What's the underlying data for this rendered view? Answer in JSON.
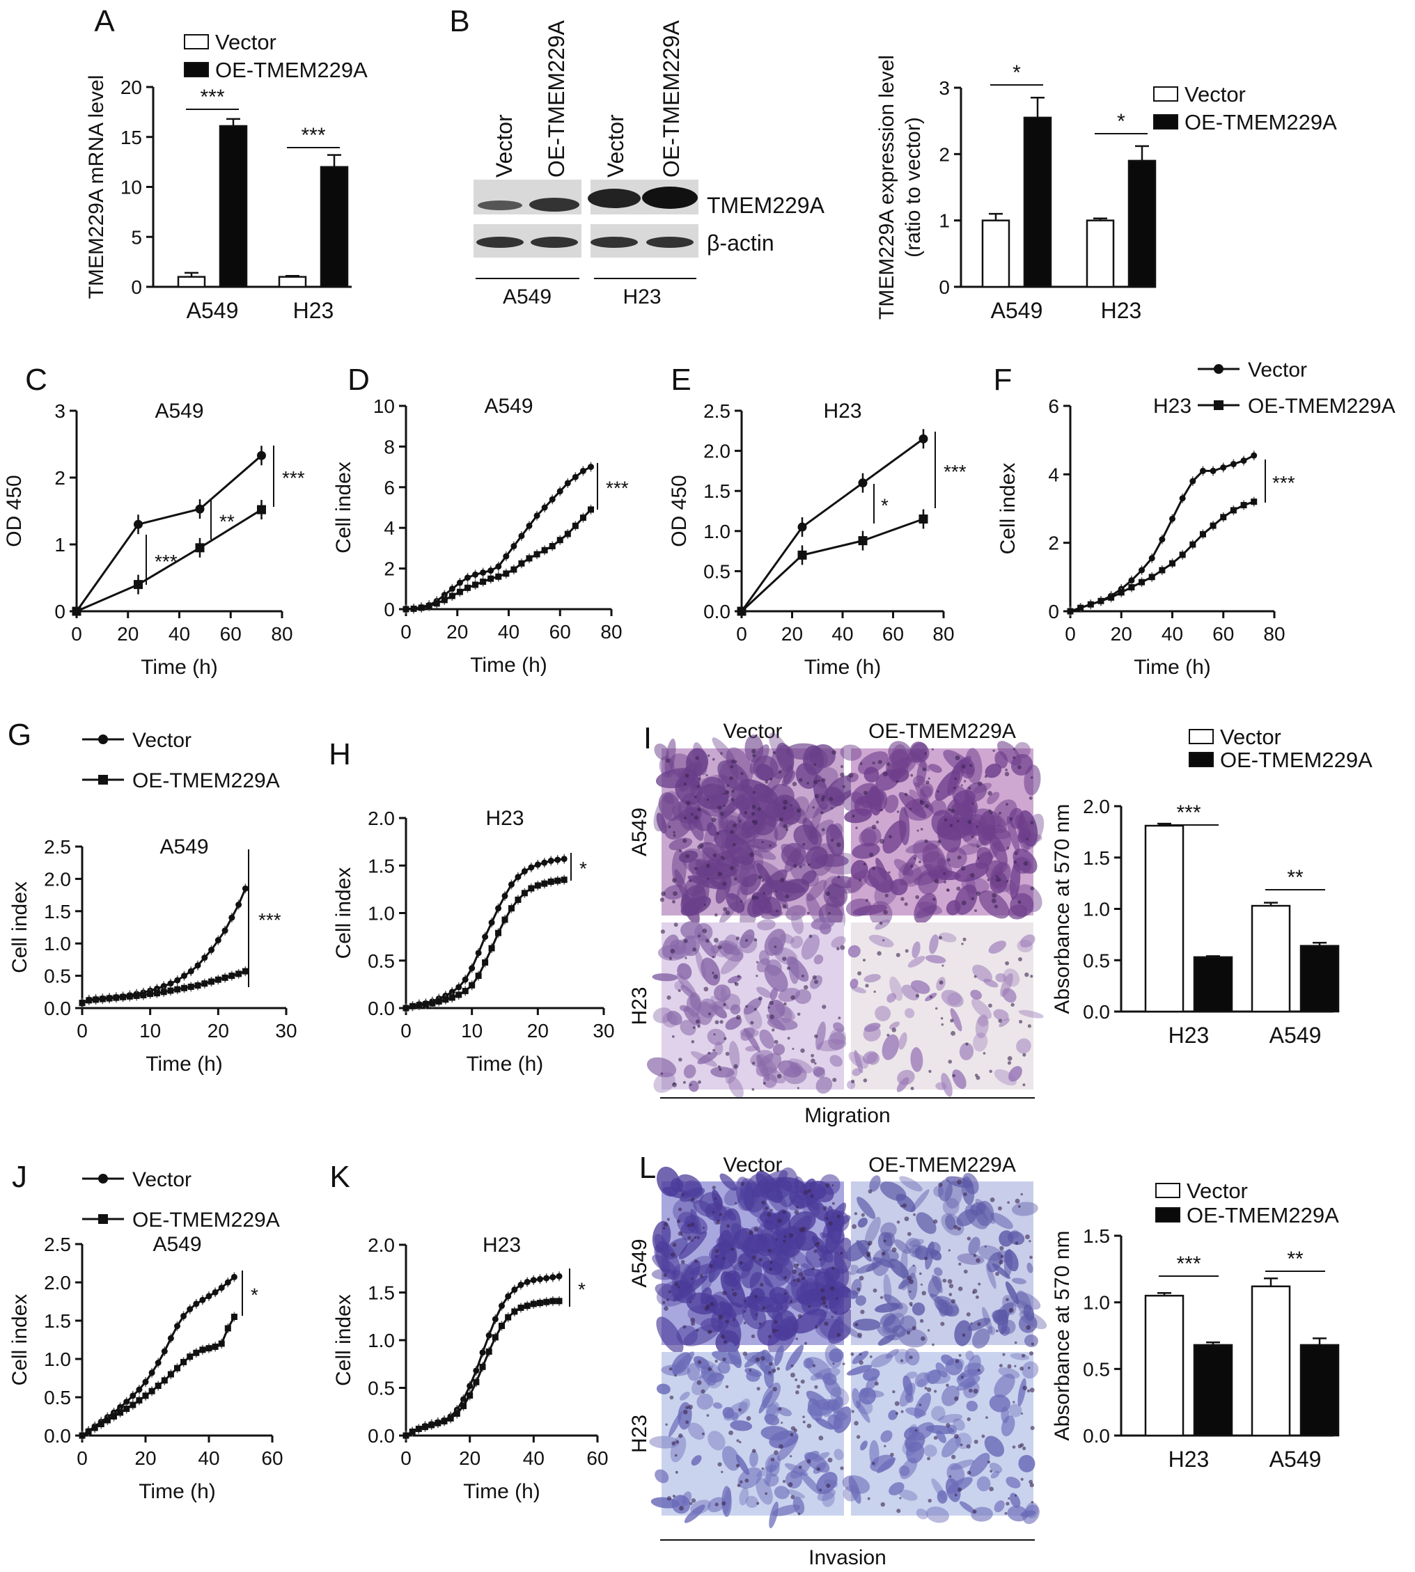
{
  "panel_letters": [
    "A",
    "B",
    "C",
    "D",
    "E",
    "F",
    "G",
    "H",
    "I",
    "J",
    "K",
    "L"
  ],
  "legend": {
    "vector": "Vector",
    "oe": "OE-TMEM229A"
  },
  "western_blot": {
    "lane_labels": [
      "Vector",
      "OE-TMEM229A",
      "Vector",
      "OE-TMEM229A"
    ],
    "bands": [
      "TMEM229A",
      "β-actin"
    ],
    "cell_lines": [
      "A549",
      "H23"
    ]
  },
  "micro_I": {
    "cols": [
      "Vector",
      "OE-TMEM229A"
    ],
    "rows": [
      "A549",
      "H23"
    ],
    "caption": "Migration"
  },
  "micro_L": {
    "cols": [
      "Vector",
      "OE-TMEM229A"
    ],
    "rows": [
      "A549",
      "H23"
    ],
    "caption": "Invasion"
  },
  "chart_data": [
    {
      "id": "A",
      "type": "bar",
      "categories": [
        "A549",
        "H23"
      ],
      "series": [
        {
          "name": "Vector",
          "values": [
            1.0,
            1.0
          ],
          "err": [
            0.4,
            0.1
          ]
        },
        {
          "name": "OE-TMEM229A",
          "values": [
            16.1,
            12.0
          ],
          "err": [
            0.7,
            1.2
          ]
        }
      ],
      "ylabel": "TMEM229A mRNA level",
      "ylim": [
        0,
        20
      ],
      "yticks": [
        "0",
        "5",
        "10",
        "15",
        "20"
      ],
      "sig": [
        "***",
        "***"
      ]
    },
    {
      "id": "B",
      "type": "bar",
      "categories": [
        "A549",
        "H23"
      ],
      "series": [
        {
          "name": "Vector",
          "values": [
            1.0,
            1.0
          ],
          "err": [
            0.1,
            0.03
          ]
        },
        {
          "name": "OE-TMEM229A",
          "values": [
            2.55,
            1.9
          ],
          "err": [
            0.3,
            0.22
          ]
        }
      ],
      "ylabel": "TMEM229A expression level",
      "ylabel2": "(ratio to vector)",
      "ylim": [
        0,
        3
      ],
      "yticks": [
        "0",
        "1",
        "2",
        "3"
      ],
      "sig": [
        "*",
        "*"
      ]
    },
    {
      "id": "C",
      "type": "line",
      "title": "A549",
      "xlabel": "Time (h)",
      "ylabel": "OD 450",
      "xlim": [
        0,
        80
      ],
      "ylim": [
        0,
        3
      ],
      "xticks": [
        "0",
        "20",
        "40",
        "60",
        "80"
      ],
      "yticks": [
        "0",
        "1",
        "2",
        "3"
      ],
      "series": [
        {
          "name": "Vector",
          "x": [
            0,
            24,
            48,
            72
          ],
          "y": [
            0,
            1.3,
            1.53,
            2.33
          ]
        },
        {
          "name": "OE-TMEM229A",
          "x": [
            0,
            24,
            48,
            72
          ],
          "y": [
            0,
            0.4,
            0.95,
            1.52
          ]
        }
      ],
      "sig": [
        "***",
        "**",
        "***"
      ]
    },
    {
      "id": "D",
      "type": "line",
      "title": "A549",
      "xlabel": "Time (h)",
      "ylabel": "Cell index",
      "xlim": [
        0,
        80
      ],
      "ylim": [
        0,
        10
      ],
      "xticks": [
        "0",
        "20",
        "40",
        "60",
        "80"
      ],
      "yticks": [
        "0",
        "2",
        "4",
        "6",
        "8",
        "10"
      ],
      "series": [
        {
          "name": "Vector",
          "x": [
            0,
            3,
            6,
            9,
            12,
            15,
            18,
            21,
            24,
            27,
            30,
            33,
            36,
            39,
            42,
            45,
            48,
            51,
            54,
            57,
            60,
            63,
            66,
            69,
            72
          ],
          "y": [
            0,
            0.03,
            0.1,
            0.2,
            0.4,
            0.7,
            1.0,
            1.3,
            1.55,
            1.7,
            1.8,
            1.9,
            2.1,
            2.6,
            3.1,
            3.6,
            4.1,
            4.6,
            5.0,
            5.4,
            5.8,
            6.2,
            6.5,
            6.8,
            7.0
          ]
        },
        {
          "name": "OE-TMEM229A",
          "x": [
            0,
            3,
            6,
            9,
            12,
            15,
            18,
            21,
            24,
            27,
            30,
            33,
            36,
            39,
            42,
            45,
            48,
            51,
            54,
            57,
            60,
            63,
            66,
            69,
            72
          ],
          "y": [
            0,
            0.02,
            0.07,
            0.15,
            0.28,
            0.45,
            0.65,
            0.85,
            1.05,
            1.2,
            1.35,
            1.5,
            1.6,
            1.75,
            1.95,
            2.25,
            2.5,
            2.7,
            2.9,
            3.1,
            3.4,
            3.7,
            4.1,
            4.5,
            4.9
          ]
        }
      ],
      "sig": [
        "***"
      ]
    },
    {
      "id": "E",
      "type": "line",
      "title": "H23",
      "xlabel": "Time (h)",
      "ylabel": "OD 450",
      "xlim": [
        0,
        80
      ],
      "ylim": [
        0,
        2.5
      ],
      "xticks": [
        "0",
        "20",
        "40",
        "60",
        "80"
      ],
      "yticks": [
        "0.0",
        "0.5",
        "1.0",
        "1.5",
        "2.0",
        "2.5"
      ],
      "series": [
        {
          "name": "Vector",
          "x": [
            0,
            24,
            48,
            72
          ],
          "y": [
            0,
            1.05,
            1.6,
            2.15
          ]
        },
        {
          "name": "OE-TMEM229A",
          "x": [
            0,
            24,
            48,
            72
          ],
          "y": [
            0,
            0.7,
            0.88,
            1.15
          ]
        }
      ],
      "sig": [
        "*",
        "***"
      ]
    },
    {
      "id": "F",
      "type": "line",
      "title": "H23",
      "xlabel": "Time (h)",
      "ylabel": "Cell index",
      "xlim": [
        0,
        80
      ],
      "ylim": [
        0,
        6
      ],
      "xticks": [
        "0",
        "20",
        "40",
        "60",
        "80"
      ],
      "yticks": [
        "0",
        "2",
        "4",
        "6"
      ],
      "series": [
        {
          "name": "Vector",
          "x": [
            0,
            4,
            8,
            12,
            16,
            20,
            24,
            28,
            32,
            36,
            40,
            44,
            48,
            52,
            56,
            60,
            64,
            68,
            72
          ],
          "y": [
            0,
            0.1,
            0.2,
            0.3,
            0.45,
            0.65,
            0.9,
            1.2,
            1.55,
            2.1,
            2.7,
            3.3,
            3.8,
            4.1,
            4.1,
            4.2,
            4.3,
            4.4,
            4.55
          ]
        },
        {
          "name": "OE-TMEM229A",
          "x": [
            0,
            4,
            8,
            12,
            16,
            20,
            24,
            28,
            32,
            36,
            40,
            44,
            48,
            52,
            56,
            60,
            64,
            68,
            72
          ],
          "y": [
            0,
            0.1,
            0.2,
            0.3,
            0.4,
            0.55,
            0.7,
            0.85,
            1.0,
            1.2,
            1.4,
            1.65,
            1.95,
            2.25,
            2.5,
            2.75,
            2.95,
            3.1,
            3.2
          ]
        }
      ],
      "sig": [
        "***"
      ]
    },
    {
      "id": "G",
      "type": "line",
      "title": "A549",
      "xlabel": "Time (h)",
      "ylabel": "Cell index",
      "xlim": [
        0,
        30
      ],
      "ylim": [
        0,
        2.5
      ],
      "xticks": [
        "0",
        "10",
        "20",
        "30"
      ],
      "yticks": [
        "0.0",
        "0.5",
        "1.0",
        "1.5",
        "2.0",
        "2.5"
      ],
      "series": [
        {
          "name": "Vector",
          "x": [
            0,
            1,
            2,
            3,
            4,
            5,
            6,
            7,
            8,
            9,
            10,
            11,
            12,
            13,
            14,
            15,
            16,
            17,
            18,
            19,
            20,
            21,
            22,
            23,
            24
          ],
          "y": [
            0.08,
            0.13,
            0.14,
            0.15,
            0.16,
            0.17,
            0.18,
            0.2,
            0.22,
            0.24,
            0.27,
            0.3,
            0.34,
            0.38,
            0.43,
            0.5,
            0.57,
            0.66,
            0.78,
            0.9,
            1.05,
            1.2,
            1.4,
            1.6,
            1.85
          ]
        },
        {
          "name": "OE-TMEM229A",
          "x": [
            0,
            1,
            2,
            3,
            4,
            5,
            6,
            7,
            8,
            9,
            10,
            11,
            12,
            13,
            14,
            15,
            16,
            17,
            18,
            19,
            20,
            21,
            22,
            23,
            24
          ],
          "y": [
            0.08,
            0.12,
            0.13,
            0.14,
            0.15,
            0.16,
            0.17,
            0.18,
            0.19,
            0.2,
            0.22,
            0.23,
            0.25,
            0.27,
            0.29,
            0.31,
            0.33,
            0.35,
            0.38,
            0.41,
            0.44,
            0.47,
            0.5,
            0.53,
            0.57
          ]
        }
      ],
      "sig": [
        "***"
      ]
    },
    {
      "id": "H",
      "type": "line",
      "title": "H23",
      "xlabel": "Time (h)",
      "ylabel": "Cell index",
      "xlim": [
        0,
        30
      ],
      "ylim": [
        0,
        2.0
      ],
      "xticks": [
        "0",
        "10",
        "20",
        "30"
      ],
      "yticks": [
        "0.0",
        "0.5",
        "1.0",
        "1.5",
        "2.0"
      ],
      "series": [
        {
          "name": "Vector",
          "x": [
            0,
            1,
            2,
            3,
            4,
            5,
            6,
            7,
            8,
            9,
            10,
            11,
            12,
            13,
            14,
            15,
            16,
            17,
            18,
            19,
            20,
            21,
            22,
            23,
            24
          ],
          "y": [
            0,
            0.02,
            0.04,
            0.05,
            0.07,
            0.1,
            0.13,
            0.17,
            0.22,
            0.3,
            0.42,
            0.58,
            0.75,
            0.9,
            1.05,
            1.18,
            1.3,
            1.38,
            1.44,
            1.48,
            1.51,
            1.53,
            1.55,
            1.56,
            1.57
          ]
        },
        {
          "name": "OE-TMEM229A",
          "x": [
            0,
            1,
            2,
            3,
            4,
            5,
            6,
            7,
            8,
            9,
            10,
            11,
            12,
            13,
            14,
            15,
            16,
            17,
            18,
            19,
            20,
            21,
            22,
            23,
            24
          ],
          "y": [
            0,
            0.02,
            0.03,
            0.04,
            0.05,
            0.07,
            0.09,
            0.11,
            0.14,
            0.18,
            0.24,
            0.34,
            0.48,
            0.63,
            0.79,
            0.93,
            1.05,
            1.14,
            1.21,
            1.26,
            1.29,
            1.31,
            1.33,
            1.34,
            1.35
          ]
        }
      ],
      "sig": [
        "*"
      ]
    },
    {
      "id": "J",
      "type": "line",
      "title": "A549",
      "xlabel": "Time (h)",
      "ylabel": "Cell index",
      "xlim": [
        0,
        60
      ],
      "ylim": [
        0,
        2.5
      ],
      "xticks": [
        "0",
        "20",
        "40",
        "60"
      ],
      "yticks": [
        "0.0",
        "0.5",
        "1.0",
        "1.5",
        "2.0",
        "2.5"
      ],
      "series": [
        {
          "name": "Vector",
          "x": [
            0,
            2,
            4,
            6,
            8,
            10,
            12,
            14,
            16,
            18,
            20,
            22,
            24,
            26,
            28,
            30,
            32,
            34,
            36,
            38,
            40,
            42,
            44,
            46,
            48
          ],
          "y": [
            0,
            0.06,
            0.12,
            0.18,
            0.24,
            0.3,
            0.37,
            0.44,
            0.52,
            0.6,
            0.7,
            0.82,
            0.95,
            1.1,
            1.27,
            1.43,
            1.56,
            1.65,
            1.72,
            1.77,
            1.82,
            1.87,
            1.93,
            2.0,
            2.07
          ]
        },
        {
          "name": "OE-TMEM229A",
          "x": [
            0,
            2,
            4,
            6,
            8,
            10,
            12,
            14,
            16,
            18,
            20,
            22,
            24,
            26,
            28,
            30,
            32,
            34,
            36,
            38,
            40,
            42,
            44,
            46,
            48
          ],
          "y": [
            0,
            0.05,
            0.1,
            0.15,
            0.2,
            0.25,
            0.3,
            0.35,
            0.4,
            0.46,
            0.52,
            0.58,
            0.65,
            0.72,
            0.8,
            0.88,
            0.96,
            1.03,
            1.08,
            1.12,
            1.14,
            1.16,
            1.2,
            1.4,
            1.55
          ]
        }
      ],
      "sig": [
        "*"
      ]
    },
    {
      "id": "K",
      "type": "line",
      "title": "H23",
      "xlabel": "Time (h)",
      "ylabel": "Cell index",
      "xlim": [
        0,
        60
      ],
      "ylim": [
        0,
        2.0
      ],
      "xticks": [
        "0",
        "20",
        "40",
        "60"
      ],
      "yticks": [
        "0.0",
        "0.5",
        "1.0",
        "1.5",
        "2.0"
      ],
      "series": [
        {
          "name": "Vector",
          "x": [
            0,
            2,
            4,
            6,
            8,
            10,
            12,
            14,
            16,
            18,
            20,
            22,
            24,
            26,
            28,
            30,
            32,
            34,
            36,
            38,
            40,
            42,
            44,
            46,
            48
          ],
          "y": [
            0,
            0.04,
            0.07,
            0.1,
            0.12,
            0.14,
            0.16,
            0.2,
            0.27,
            0.38,
            0.52,
            0.68,
            0.87,
            1.05,
            1.22,
            1.36,
            1.46,
            1.53,
            1.58,
            1.61,
            1.63,
            1.64,
            1.65,
            1.66,
            1.67
          ]
        },
        {
          "name": "OE-TMEM229A",
          "x": [
            0,
            2,
            4,
            6,
            8,
            10,
            12,
            14,
            16,
            18,
            20,
            22,
            24,
            26,
            28,
            30,
            32,
            34,
            36,
            38,
            40,
            42,
            44,
            46,
            48
          ],
          "y": [
            0,
            0.04,
            0.07,
            0.09,
            0.11,
            0.13,
            0.15,
            0.18,
            0.23,
            0.31,
            0.42,
            0.56,
            0.72,
            0.88,
            1.03,
            1.15,
            1.24,
            1.3,
            1.34,
            1.36,
            1.38,
            1.39,
            1.4,
            1.41,
            1.41
          ]
        }
      ],
      "sig": [
        "*"
      ]
    },
    {
      "id": "I",
      "type": "bar",
      "categories": [
        "H23",
        "A549"
      ],
      "series": [
        {
          "name": "Vector",
          "values": [
            1.81,
            1.03
          ],
          "err": [
            0.02,
            0.03
          ]
        },
        {
          "name": "OE-TMEM229A",
          "values": [
            0.53,
            0.64
          ],
          "err": [
            0.01,
            0.03
          ]
        }
      ],
      "ylabel": "Absorbance at 570 nm",
      "ylim": [
        0,
        2.0
      ],
      "yticks": [
        "0.0",
        "0.5",
        "1.0",
        "1.5",
        "2.0"
      ],
      "sig": [
        "***",
        "**"
      ]
    },
    {
      "id": "L",
      "type": "bar",
      "categories": [
        "H23",
        "A549"
      ],
      "series": [
        {
          "name": "Vector",
          "values": [
            1.05,
            1.12
          ],
          "err": [
            0.02,
            0.06
          ]
        },
        {
          "name": "OE-TMEM229A",
          "values": [
            0.68,
            0.68
          ],
          "err": [
            0.02,
            0.05
          ]
        }
      ],
      "ylabel": "Absorbance at 570 nm",
      "ylim": [
        0,
        1.5
      ],
      "yticks": [
        "0.0",
        "0.5",
        "1.0",
        "1.5"
      ],
      "sig": [
        "***",
        "**"
      ]
    }
  ]
}
